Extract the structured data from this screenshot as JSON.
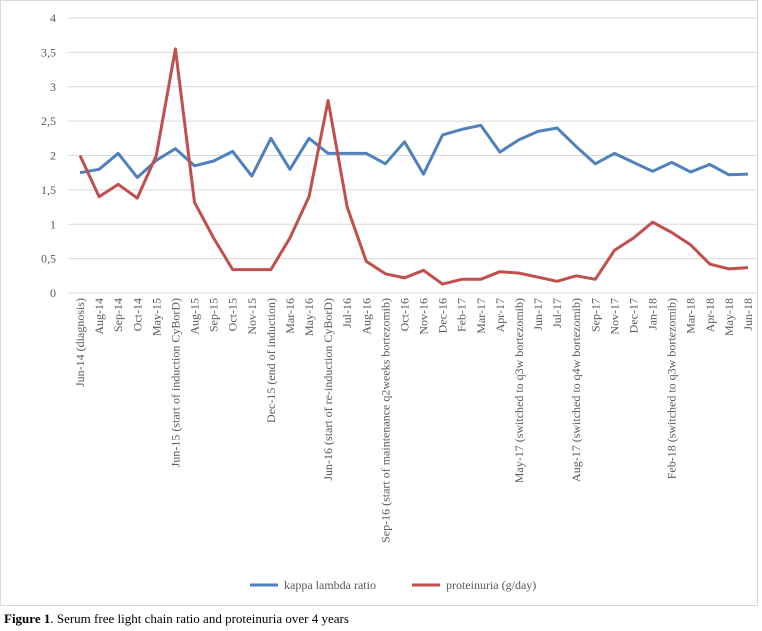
{
  "chart_data": {
    "type": "line",
    "categories": [
      "Jun-14 (diagnosis)",
      "Aug-14",
      "Sep-14",
      "Oct-14",
      "May-15",
      "Jun-15 (start of induction CyBorD)",
      "Aug-15",
      "Sep-15",
      "Oct-15",
      "Nov-15",
      "Dec-15 (end of induction)",
      "Mar-16",
      "May-16",
      "Jun-16 (start of re-induction CyBorD)",
      "Jul-16",
      "Aug-16",
      "Sep-16 (start of maintenance q2weeks bortezomib)",
      "Oct-16",
      "Nov-16",
      "Dec-16",
      "Feb-17",
      "Mar-17",
      "Apr-17",
      "May-17 (switched to q3w bortezomib)",
      "Jun-17",
      "Jul-17",
      "Aug-17 (switched to q4w bortezomib)",
      "Sep-17",
      "Nov-17",
      "Dec-17",
      "Jan-18",
      "Feb-18 (switched to q3w bortezomib)",
      "Mar-18",
      "Apr-18",
      "May-18",
      "Jun-18"
    ],
    "series": [
      {
        "name": "kappa lambda ratio",
        "color": "#4f81bd",
        "values": [
          1.75,
          1.8,
          2.03,
          1.68,
          1.93,
          2.1,
          1.85,
          1.92,
          2.06,
          1.7,
          2.25,
          1.8,
          2.25,
          2.03,
          2.03,
          2.03,
          1.88,
          2.2,
          1.73,
          2.3,
          2.38,
          2.44,
          2.05,
          2.23,
          2.35,
          2.4,
          2.13,
          1.88,
          2.03,
          1.9,
          1.77,
          1.9,
          1.76,
          1.87,
          1.72,
          1.73
        ]
      },
      {
        "name": "proteinuria (g/day)",
        "color": "#c0504d",
        "values": [
          2.0,
          1.4,
          1.58,
          1.38,
          2.0,
          3.55,
          1.32,
          0.8,
          0.34,
          0.34,
          0.34,
          0.8,
          1.4,
          2.8,
          1.25,
          0.46,
          0.28,
          0.22,
          0.33,
          0.13,
          0.2,
          0.2,
          0.31,
          0.29,
          0.23,
          0.17,
          0.25,
          0.2,
          0.62,
          0.8,
          1.03,
          0.88,
          0.7,
          0.42,
          0.35,
          0.37
        ]
      }
    ],
    "ylim": [
      0,
      4
    ],
    "yticks": [
      0,
      {
        "value": 0.5,
        "label": "0,5"
      },
      1,
      {
        "value": 1.5,
        "label": "1,5"
      },
      2,
      {
        "value": 2.5,
        "label": "2,5"
      },
      3,
      {
        "value": 3.5,
        "label": "3,5"
      },
      4
    ],
    "grid": true,
    "legend": "bottom",
    "caption": {
      "label": "Figure 1",
      "text": ". Serum free light chain ratio and proteinuria over 4 years"
    }
  }
}
